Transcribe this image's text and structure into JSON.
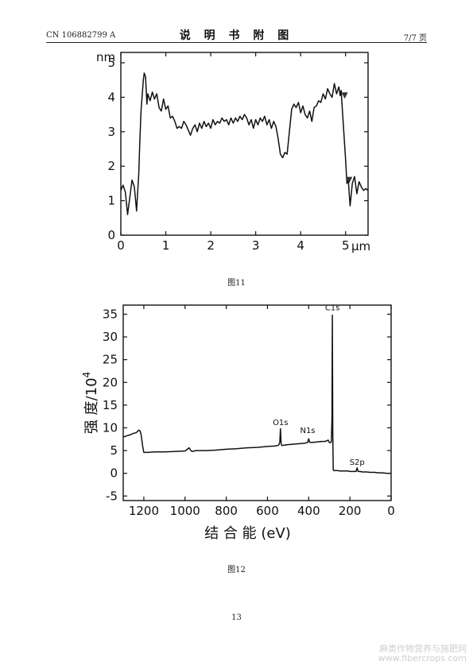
{
  "header": {
    "left": "CN 106882799 A",
    "center": "说 明 书 附 图",
    "right": "7/7 页"
  },
  "figures": [
    {
      "caption": "图11"
    },
    {
      "caption": "图12"
    }
  ],
  "page_number": "13",
  "watermark": {
    "line1": "麻类作物营养与施肥网",
    "line2": "www.fibercrops.com"
  },
  "chart_data": [
    {
      "type": "line",
      "xlabel": "",
      "ylabel": "",
      "x_unit_label": "μm",
      "y_unit_label": "nm",
      "xlim": [
        0,
        5.5
      ],
      "ylim": [
        0,
        5.3
      ],
      "x_ticks": [
        0,
        1,
        2,
        3,
        4,
        5
      ],
      "y_ticks": [
        0,
        1,
        2,
        3,
        4,
        5
      ],
      "grid": false,
      "series": [
        {
          "x": [
            0,
            0.05,
            0.1,
            0.15,
            0.2,
            0.25,
            0.3,
            0.35,
            0.4,
            0.42,
            0.45,
            0.5,
            0.52,
            0.55,
            0.58,
            0.6,
            0.65,
            0.7,
            0.75,
            0.8,
            0.85,
            0.9,
            0.95,
            1.0,
            1.05,
            1.1,
            1.15,
            1.2,
            1.25,
            1.3,
            1.35,
            1.4,
            1.45,
            1.5,
            1.55,
            1.6,
            1.65,
            1.7,
            1.75,
            1.8,
            1.85,
            1.9,
            1.95,
            2.0,
            2.05,
            2.1,
            2.15,
            2.2,
            2.25,
            2.3,
            2.35,
            2.4,
            2.45,
            2.5,
            2.55,
            2.6,
            2.65,
            2.7,
            2.75,
            2.8,
            2.85,
            2.9,
            2.95,
            3.0,
            3.05,
            3.1,
            3.15,
            3.2,
            3.25,
            3.3,
            3.35,
            3.4,
            3.45,
            3.5,
            3.55,
            3.6,
            3.65,
            3.7,
            3.75,
            3.8,
            3.85,
            3.9,
            3.95,
            4.0,
            4.05,
            4.1,
            4.15,
            4.2,
            4.25,
            4.3,
            4.35,
            4.4,
            4.45,
            4.5,
            4.55,
            4.6,
            4.65,
            4.7,
            4.75,
            4.8,
            4.85,
            4.88,
            4.9,
            4.92,
            4.95,
            5.0,
            5.03,
            5.06,
            5.1,
            5.15,
            5.2,
            5.25,
            5.3,
            5.35,
            5.4,
            5.45,
            5.5
          ],
          "y": [
            1.3,
            1.45,
            1.25,
            0.6,
            1.1,
            1.6,
            1.4,
            0.7,
            1.8,
            2.6,
            3.6,
            4.5,
            4.7,
            4.6,
            3.8,
            4.1,
            3.9,
            4.15,
            3.95,
            4.1,
            3.7,
            3.6,
            3.95,
            3.65,
            3.75,
            3.4,
            3.45,
            3.3,
            3.1,
            3.15,
            3.1,
            3.3,
            3.2,
            3.05,
            2.9,
            3.1,
            3.2,
            3.0,
            3.25,
            3.1,
            3.3,
            3.15,
            3.25,
            3.1,
            3.35,
            3.2,
            3.3,
            3.25,
            3.4,
            3.3,
            3.35,
            3.2,
            3.4,
            3.25,
            3.4,
            3.3,
            3.45,
            3.35,
            3.5,
            3.4,
            3.2,
            3.35,
            3.1,
            3.35,
            3.2,
            3.4,
            3.3,
            3.45,
            3.2,
            3.35,
            3.1,
            3.3,
            3.15,
            2.8,
            2.35,
            2.25,
            2.4,
            2.35,
            3.0,
            3.65,
            3.8,
            3.7,
            3.85,
            3.55,
            3.75,
            3.5,
            3.4,
            3.6,
            3.3,
            3.7,
            3.75,
            3.9,
            3.85,
            4.1,
            3.95,
            4.25,
            4.1,
            4.0,
            4.4,
            4.1,
            4.3,
            4.05,
            4.2,
            3.8,
            3.2,
            2.2,
            1.5,
            1.6,
            0.85,
            1.5,
            1.7,
            1.2,
            1.55,
            1.4,
            1.3,
            1.35,
            1.3
          ]
        }
      ],
      "markers": [
        {
          "x": 4.98,
          "y": 4.05,
          "shape": "triangle-down"
        },
        {
          "x": 5.08,
          "y": 1.6,
          "shape": "triangle-down"
        }
      ]
    },
    {
      "type": "line",
      "xlabel": "结 合 能 (eV)",
      "ylabel": "强 度/10",
      "ylabel_superscript": "4",
      "xlim": [
        1300,
        0
      ],
      "ylim": [
        -6,
        37
      ],
      "x_ticks": [
        1200,
        1000,
        800,
        600,
        400,
        200,
        0
      ],
      "y_ticks": [
        -5,
        0,
        5,
        10,
        15,
        20,
        25,
        30,
        35
      ],
      "grid": false,
      "annotations": [
        {
          "text": "C1s",
          "x": 285,
          "y": 35.3
        },
        {
          "text": "O1s",
          "x": 537,
          "y": 10.1
        },
        {
          "text": "N1s",
          "x": 405,
          "y": 8.3
        },
        {
          "text": "S2p",
          "x": 165,
          "y": 1.3
        }
      ],
      "series": [
        {
          "x": [
            1300,
            1290,
            1280,
            1270,
            1260,
            1250,
            1240,
            1232,
            1225,
            1218,
            1212,
            1206,
            1200,
            1180,
            1150,
            1100,
            1050,
            1000,
            980,
            970,
            960,
            950,
            900,
            850,
            800,
            750,
            700,
            650,
            600,
            560,
            545,
            540,
            537,
            534,
            530,
            520,
            500,
            450,
            420,
            405,
            400,
            395,
            380,
            360,
            340,
            320,
            310,
            305,
            300,
            295,
            290,
            287,
            285,
            283,
            281,
            278,
            270,
            260,
            250,
            240,
            230,
            220,
            210,
            200,
            190,
            180,
            170,
            165,
            160,
            150,
            140,
            120,
            100,
            80,
            60,
            40,
            20,
            0
          ],
          "y": [
            8.0,
            8.1,
            8.3,
            8.4,
            8.6,
            8.8,
            8.9,
            9.1,
            9.5,
            9.3,
            8.2,
            6.0,
            4.6,
            4.6,
            4.7,
            4.7,
            4.8,
            4.9,
            5.6,
            4.9,
            4.8,
            5.0,
            5.0,
            5.1,
            5.3,
            5.4,
            5.6,
            5.7,
            5.9,
            6.0,
            6.2,
            6.9,
            9.8,
            6.5,
            6.1,
            6.2,
            6.3,
            6.5,
            6.6,
            6.8,
            7.6,
            6.8,
            6.8,
            6.9,
            7.0,
            7.0,
            7.2,
            7.3,
            6.8,
            6.7,
            6.9,
            12.0,
            34.8,
            9.0,
            0.8,
            0.6,
            0.6,
            0.6,
            0.5,
            0.5,
            0.5,
            0.5,
            0.5,
            0.4,
            0.4,
            0.4,
            0.4,
            1.2,
            0.4,
            0.4,
            0.3,
            0.3,
            0.2,
            0.2,
            0.1,
            0.1,
            0.0,
            0.0
          ]
        }
      ]
    }
  ]
}
